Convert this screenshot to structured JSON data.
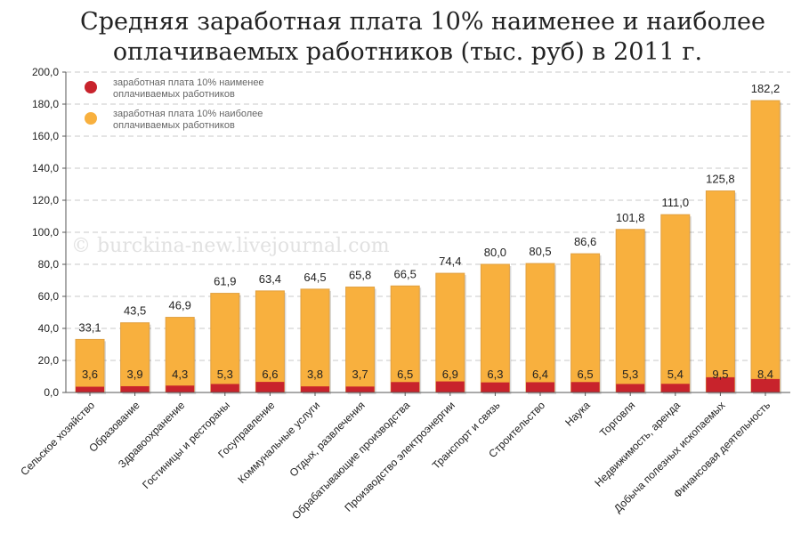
{
  "colors": {
    "low": "#c8232c",
    "high": "#f8b03e",
    "high_border": "#e0a040",
    "grid": "#c8c8c8",
    "axis": "#555555",
    "legend_low": "#c8232c",
    "legend_high": "#f8b03e"
  },
  "watermark": "© burckina-new.livejournal.com",
  "chart_data": {
    "type": "bar",
    "title_lines": [
      "Средняя заработная плата 10% наименее и наиболее",
      "оплачиваемых работников (тыс. руб) в 2011 г."
    ],
    "ylim": [
      0,
      200
    ],
    "yticks": [
      "0,0",
      "20,0",
      "40,0",
      "60,0",
      "80,0",
      "100,0",
      "120,0",
      "140,0",
      "160,0",
      "180,0",
      "200,0"
    ],
    "grid": true,
    "legend_position": "top-left",
    "categories": [
      "Сельское хозяйство",
      "Образование",
      "Здравоохранение",
      "Гостиницы и рестораны",
      "Госуправление",
      "Коммунальные услуги",
      "Отдых, развлечения",
      "Обрабатывающие производства",
      "Производство электроэнергии",
      "Транспорт и связь",
      "Строительство",
      "Наука",
      "Торговля",
      "Недвижимость, аренда",
      "Добыча полезных ископаемых",
      "Финансовая деятельность"
    ],
    "series": [
      {
        "name": "заработная плата 10% наименее оплачиваемых работников",
        "legend_lines": [
          "заработная плата 10% наименее",
          "оплачиваемых работников"
        ],
        "values": [
          3.6,
          3.9,
          4.3,
          5.3,
          6.6,
          3.8,
          3.7,
          6.5,
          6.9,
          6.3,
          6.4,
          6.5,
          5.3,
          5.4,
          9.5,
          8.4
        ],
        "labels": [
          "3,6",
          "3,9",
          "4,3",
          "5,3",
          "6,6",
          "3,8",
          "3,7",
          "6,5",
          "6,9",
          "6,3",
          "6,4",
          "6,5",
          "5,3",
          "5,4",
          "9,5",
          "8,4"
        ]
      },
      {
        "name": "заработная плата 10% наиболее оплачиваемых работников",
        "legend_lines": [
          "заработная плата 10% наиболее",
          "оплачиваемых работников"
        ],
        "values": [
          33.1,
          43.5,
          46.9,
          61.9,
          63.4,
          64.5,
          65.8,
          66.5,
          74.4,
          80.0,
          80.5,
          86.6,
          101.8,
          111.0,
          125.8,
          182.2
        ],
        "labels": [
          "33,1",
          "43,5",
          "46,9",
          "61,9",
          "63,4",
          "64,5",
          "65,8",
          "66,5",
          "74,4",
          "80,0",
          "80,5",
          "86,6",
          "101,8",
          "111,0",
          "125,8",
          "182,2"
        ]
      }
    ]
  }
}
